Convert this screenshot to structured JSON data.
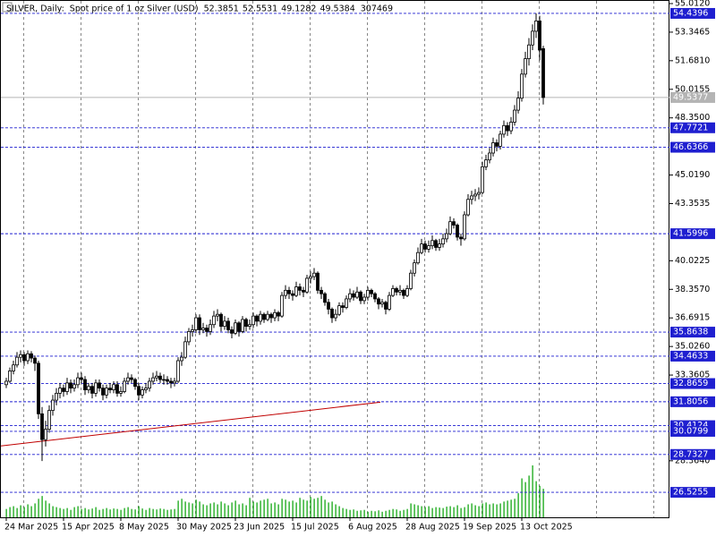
{
  "chart_data": {
    "type": "candlestick",
    "title": "SILVER, Daily:  Spot price of 1 oz Silver (USD)",
    "categories": [
      "24 Mar 2025",
      null,
      null,
      null,
      null,
      null,
      null,
      null,
      null,
      null,
      null,
      null,
      null,
      null,
      null,
      null,
      "15 Apr 2025",
      null,
      null,
      null,
      null,
      null,
      null,
      null,
      null,
      null,
      null,
      null,
      null,
      null,
      null,
      null,
      "8 May 2025",
      null,
      null,
      null,
      null,
      null,
      null,
      null,
      null,
      null,
      null,
      null,
      null,
      null,
      null,
      null,
      "30 May 2025",
      null,
      null,
      null,
      null,
      null,
      null,
      null,
      null,
      null,
      null,
      null,
      null,
      null,
      null,
      null,
      "23 Jun 2025",
      null,
      null,
      null,
      null,
      null,
      null,
      null,
      null,
      null,
      null,
      null,
      null,
      null,
      null,
      null,
      "15 Jul 2025",
      null,
      null,
      null,
      null,
      null,
      null,
      null,
      null,
      null,
      null,
      null,
      null,
      null,
      null,
      null,
      "6 Aug 2025",
      null,
      null,
      null,
      null,
      null,
      null,
      null,
      null,
      null,
      null,
      null,
      null,
      null,
      null,
      null,
      "28 Aug 2025",
      null,
      null,
      null,
      null,
      null,
      null,
      null,
      null,
      null,
      null,
      null,
      null,
      null,
      null,
      null,
      "19 Sep 2025",
      null,
      null,
      null,
      null,
      null,
      null,
      null,
      null,
      null,
      null,
      null,
      null,
      null,
      null,
      null,
      "13 Oct 2025",
      null,
      null,
      null,
      null,
      null,
      null
    ],
    "candles": [
      [
        32.8,
        33.2,
        32.6,
        33.0
      ],
      [
        33.0,
        33.8,
        32.9,
        33.6
      ],
      [
        33.6,
        34.2,
        33.4,
        33.95
      ],
      [
        33.95,
        34.7,
        33.8,
        34.4
      ],
      [
        34.4,
        34.8,
        34.1,
        34.55
      ],
      [
        34.55,
        34.7,
        33.9,
        34.2
      ],
      [
        34.2,
        34.8,
        34.0,
        34.6
      ],
      [
        34.6,
        34.75,
        34.1,
        34.35
      ],
      [
        34.35,
        34.5,
        33.6,
        34.05
      ],
      [
        34.05,
        34.2,
        30.8,
        31.1
      ],
      [
        31.1,
        31.5,
        28.35,
        29.6
      ],
      [
        29.6,
        30.7,
        29.2,
        30.2
      ],
      [
        30.2,
        31.6,
        30.0,
        31.3
      ],
      [
        31.3,
        32.2,
        31.0,
        31.9
      ],
      [
        31.9,
        32.6,
        31.6,
        32.3
      ],
      [
        32.3,
        32.9,
        32.0,
        32.6
      ],
      [
        32.6,
        32.8,
        32.1,
        32.4
      ],
      [
        32.4,
        33.2,
        32.2,
        32.9
      ],
      [
        32.9,
        33.1,
        32.3,
        32.6
      ],
      [
        32.6,
        33.1,
        32.4,
        32.8
      ],
      [
        32.8,
        33.5,
        32.6,
        33.2
      ],
      [
        33.2,
        33.5,
        32.9,
        33.1
      ],
      [
        33.1,
        33.3,
        32.2,
        32.5
      ],
      [
        32.5,
        32.9,
        32.3,
        32.7
      ],
      [
        32.7,
        32.9,
        32.0,
        32.3
      ],
      [
        32.3,
        33.1,
        32.1,
        32.9
      ],
      [
        32.9,
        33.1,
        32.4,
        32.6
      ],
      [
        32.6,
        32.8,
        31.9,
        32.2
      ],
      [
        32.2,
        32.8,
        32.0,
        32.6
      ],
      [
        32.6,
        32.9,
        32.3,
        32.5
      ],
      [
        32.5,
        33.0,
        32.3,
        32.8
      ],
      [
        32.8,
        33.0,
        32.1,
        32.3
      ],
      [
        32.3,
        32.7,
        32.1,
        32.4
      ],
      [
        32.4,
        33.2,
        32.3,
        33.0
      ],
      [
        33.0,
        33.5,
        32.8,
        33.2
      ],
      [
        33.2,
        33.4,
        32.9,
        33.1
      ],
      [
        33.1,
        33.2,
        32.5,
        32.7
      ],
      [
        32.7,
        32.9,
        31.9,
        32.2
      ],
      [
        32.2,
        32.7,
        32.0,
        32.5
      ],
      [
        32.5,
        32.9,
        32.3,
        32.6
      ],
      [
        32.6,
        33.2,
        32.4,
        33.0
      ],
      [
        33.0,
        33.5,
        32.8,
        33.2
      ],
      [
        33.2,
        33.6,
        33.0,
        33.3
      ],
      [
        33.3,
        33.5,
        32.9,
        33.1
      ],
      [
        33.1,
        33.4,
        32.8,
        33.1
      ],
      [
        33.1,
        33.3,
        32.8,
        33.0
      ],
      [
        33.0,
        33.2,
        32.6,
        32.9
      ],
      [
        32.9,
        33.2,
        32.7,
        33.0
      ],
      [
        33.0,
        34.4,
        32.9,
        34.2
      ],
      [
        34.2,
        34.7,
        33.9,
        34.4
      ],
      [
        34.4,
        35.6,
        34.3,
        35.3
      ],
      [
        35.3,
        36.1,
        35.1,
        35.9
      ],
      [
        35.9,
        36.3,
        35.6,
        36.0
      ],
      [
        36.0,
        36.9,
        35.8,
        36.7
      ],
      [
        36.7,
        36.9,
        35.7,
        36.0
      ],
      [
        36.0,
        36.4,
        35.8,
        36.1
      ],
      [
        36.1,
        36.3,
        35.6,
        35.9
      ],
      [
        35.9,
        36.6,
        35.7,
        36.3
      ],
      [
        36.3,
        37.1,
        36.1,
        36.8
      ],
      [
        36.8,
        37.2,
        36.5,
        36.9
      ],
      [
        36.9,
        37.0,
        35.9,
        36.2
      ],
      [
        36.2,
        36.8,
        36.0,
        36.5
      ],
      [
        36.5,
        36.7,
        35.8,
        36.0
      ],
      [
        36.0,
        36.2,
        35.5,
        35.8
      ],
      [
        35.8,
        36.6,
        35.7,
        36.4
      ],
      [
        36.4,
        36.5,
        35.6,
        35.9
      ],
      [
        35.9,
        36.8,
        35.8,
        36.6
      ],
      [
        36.6,
        36.7,
        35.9,
        36.2
      ],
      [
        36.2,
        36.6,
        36.0,
        36.3
      ],
      [
        36.3,
        37.0,
        36.1,
        36.8
      ],
      [
        36.8,
        36.9,
        36.2,
        36.5
      ],
      [
        36.5,
        37.1,
        36.3,
        36.9
      ],
      [
        36.9,
        37.0,
        36.4,
        36.6
      ],
      [
        36.6,
        37.1,
        36.5,
        36.9
      ],
      [
        36.9,
        37.0,
        36.4,
        36.7
      ],
      [
        36.7,
        37.2,
        36.5,
        37.0
      ],
      [
        37.0,
        37.1,
        36.5,
        36.8
      ],
      [
        36.8,
        38.2,
        36.7,
        38.0
      ],
      [
        38.0,
        38.6,
        37.8,
        38.3
      ],
      [
        38.3,
        38.5,
        37.8,
        38.1
      ],
      [
        38.1,
        38.3,
        37.7,
        38.0
      ],
      [
        38.0,
        38.8,
        37.9,
        38.5
      ],
      [
        38.5,
        38.7,
        38.0,
        38.3
      ],
      [
        38.3,
        38.5,
        37.9,
        38.2
      ],
      [
        38.2,
        39.2,
        38.1,
        39.0
      ],
      [
        39.0,
        39.4,
        38.7,
        39.1
      ],
      [
        39.1,
        39.6,
        38.9,
        39.3
      ],
      [
        39.3,
        39.4,
        38.1,
        38.3
      ],
      [
        38.3,
        38.5,
        37.8,
        38.1
      ],
      [
        38.1,
        38.2,
        37.4,
        37.6
      ],
      [
        37.6,
        37.8,
        36.9,
        37.2
      ],
      [
        37.2,
        37.3,
        36.4,
        36.7
      ],
      [
        36.7,
        37.2,
        36.5,
        36.9
      ],
      [
        36.9,
        37.6,
        36.8,
        37.4
      ],
      [
        37.4,
        37.6,
        37.0,
        37.3
      ],
      [
        37.3,
        38.0,
        37.2,
        37.8
      ],
      [
        37.8,
        38.4,
        37.6,
        38.1
      ],
      [
        38.1,
        38.3,
        37.7,
        37.9
      ],
      [
        37.9,
        38.5,
        37.8,
        38.2
      ],
      [
        38.2,
        38.3,
        37.5,
        37.7
      ],
      [
        37.7,
        38.1,
        37.5,
        37.9
      ],
      [
        37.9,
        38.5,
        37.7,
        38.3
      ],
      [
        38.3,
        38.4,
        37.9,
        38.1
      ],
      [
        38.1,
        38.2,
        37.6,
        37.8
      ],
      [
        37.8,
        37.9,
        37.2,
        37.5
      ],
      [
        37.5,
        37.8,
        37.3,
        37.6
      ],
      [
        37.6,
        37.7,
        36.9,
        37.2
      ],
      [
        37.2,
        38.2,
        37.1,
        38.0
      ],
      [
        38.0,
        38.6,
        37.9,
        38.4
      ],
      [
        38.4,
        38.5,
        38.0,
        38.2
      ],
      [
        38.2,
        38.6,
        38.0,
        38.3
      ],
      [
        38.3,
        38.4,
        37.8,
        38.0
      ],
      [
        38.0,
        38.6,
        37.9,
        38.4
      ],
      [
        38.4,
        39.5,
        38.3,
        39.3
      ],
      [
        39.3,
        40.1,
        39.1,
        39.9
      ],
      [
        39.9,
        40.8,
        39.8,
        40.5
      ],
      [
        40.5,
        41.3,
        40.4,
        41.0
      ],
      [
        41.0,
        41.2,
        40.5,
        40.7
      ],
      [
        40.7,
        41.2,
        40.5,
        40.9
      ],
      [
        40.9,
        41.5,
        40.7,
        41.2
      ],
      [
        41.2,
        41.3,
        40.6,
        40.8
      ],
      [
        40.8,
        41.3,
        40.6,
        41.0
      ],
      [
        41.0,
        41.6,
        40.8,
        41.3
      ],
      [
        41.3,
        41.9,
        41.1,
        41.6
      ],
      [
        41.6,
        42.6,
        41.5,
        42.3
      ],
      [
        42.3,
        42.5,
        41.9,
        42.1
      ],
      [
        42.1,
        42.2,
        41.2,
        41.4
      ],
      [
        41.4,
        41.6,
        40.9,
        41.3
      ],
      [
        41.3,
        42.9,
        41.2,
        42.7
      ],
      [
        42.7,
        43.9,
        42.6,
        43.6
      ],
      [
        43.6,
        44.1,
        43.3,
        43.8
      ],
      [
        43.8,
        44.2,
        43.5,
        43.9
      ],
      [
        43.9,
        44.3,
        43.6,
        44.0
      ],
      [
        44.0,
        45.8,
        43.9,
        45.5
      ],
      [
        45.5,
        46.2,
        45.3,
        45.9
      ],
      [
        45.9,
        46.6,
        45.7,
        46.3
      ],
      [
        46.3,
        47.2,
        46.1,
        46.9
      ],
      [
        46.9,
        47.1,
        46.4,
        46.7
      ],
      [
        46.7,
        47.6,
        46.5,
        47.4
      ],
      [
        47.4,
        48.2,
        47.2,
        47.9
      ],
      [
        47.9,
        48.1,
        47.3,
        47.6
      ],
      [
        47.6,
        48.4,
        47.4,
        48.1
      ],
      [
        48.1,
        49.1,
        47.9,
        48.8
      ],
      [
        48.8,
        49.9,
        48.6,
        49.5
      ],
      [
        49.5,
        51.2,
        49.3,
        50.9
      ],
      [
        50.9,
        52.2,
        50.7,
        51.8
      ],
      [
        51.8,
        53.0,
        51.4,
        52.6
      ],
      [
        52.6,
        53.8,
        52.3,
        53.4
      ],
      [
        53.4,
        54.44,
        53.0,
        54.0
      ],
      [
        54.0,
        54.3,
        51.7,
        52.3
      ],
      [
        52.3851,
        52.5531,
        49.1282,
        49.5384
      ]
    ],
    "volume": [
      90000,
      110000,
      120000,
      100000,
      130000,
      110000,
      140000,
      120000,
      150000,
      200000,
      230000,
      180000,
      150000,
      120000,
      110000,
      100000,
      90000,
      100000,
      80000,
      110000,
      120000,
      90000,
      100000,
      85000,
      95000,
      110000,
      80000,
      90000,
      100000,
      85000,
      95000,
      90000,
      80000,
      100000,
      110000,
      90000,
      85000,
      120000,
      95000,
      80000,
      100000,
      90000,
      85000,
      95000,
      90000,
      80000,
      85000,
      90000,
      180000,
      200000,
      170000,
      160000,
      150000,
      190000,
      170000,
      140000,
      130000,
      150000,
      160000,
      140000,
      170000,
      150000,
      130000,
      160000,
      180000,
      140000,
      150000,
      130000,
      210000,
      170000,
      160000,
      180000,
      190000,
      200000,
      150000,
      160000,
      140000,
      200000,
      190000,
      170000,
      180000,
      160000,
      210000,
      190000,
      180000,
      220000,
      200000,
      210000,
      230000,
      190000,
      160000,
      170000,
      140000,
      120000,
      100000,
      90000,
      80000,
      85000,
      70000,
      75000,
      80000,
      60000,
      70000,
      65000,
      75000,
      60000,
      70000,
      80000,
      90000,
      85000,
      70000,
      80000,
      90000,
      150000,
      140000,
      130000,
      120000,
      110000,
      120000,
      100000,
      110000,
      105000,
      100000,
      115000,
      120000,
      110000,
      130000,
      100000,
      110000,
      140000,
      150000,
      130000,
      120000,
      150000,
      160000,
      140000,
      150000,
      140000,
      150000,
      170000,
      180000,
      190000,
      200000,
      260000,
      420000,
      380000,
      450000,
      560000,
      390000,
      340000,
      307469
    ],
    "up_color": "#ffffff",
    "down_color": "#000000",
    "volume_color": "#00a000",
    "ylim": [
      25.07,
      55.22
    ],
    "yticks": [
      {
        "value": 55.012,
        "label": "55.0120"
      },
      53.3465,
      {
        "value": 51.681,
        "label": "51.6810"
      },
      50.0155,
      {
        "value": 48.35,
        "label": "48.3500"
      },
      {
        "value": 45.019,
        "label": "45.0190"
      },
      43.3535,
      40.0225,
      {
        "value": 38.357,
        "label": "38.3570"
      },
      36.6915,
      {
        "value": 35.026,
        "label": "35.0260"
      },
      33.3605,
      {
        "value": 28.364,
        "label": "28.3640"
      }
    ],
    "levels": [
      54.4396,
      47.7721,
      46.6366,
      41.5996,
      35.8638,
      34.4633,
      32.8659,
      31.8056,
      30.4124,
      30.0799,
      28.7327,
      26.5255
    ],
    "level_color": "#1f1fd0",
    "bid": 49.5377,
    "bid_color": "#b4b4b4",
    "trendline": {
      "values": [
        29.23,
        31.78
      ],
      "color": "#c00000"
    }
  }
}
